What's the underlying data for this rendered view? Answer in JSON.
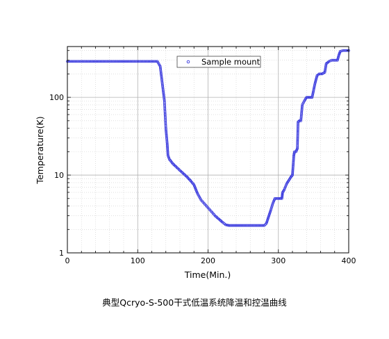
{
  "caption": "典型Qcryo-S-500干式低温系统降温和控温曲线",
  "chart_data": {
    "type": "scatter",
    "xlabel": "Time(Min.)",
    "ylabel": "Temperature(K)",
    "xlim": [
      0,
      400
    ],
    "ylim": [
      1,
      450
    ],
    "yscale": "log",
    "x_ticks": [
      "0",
      "100",
      "200",
      "300",
      "400"
    ],
    "y_ticks": [
      "1",
      "10",
      "100"
    ],
    "grid": "major solid, minor dotted",
    "legend_position": "top",
    "colors": {
      "series": "#3333dd",
      "grid_major": "#b0b0b0",
      "grid_minor": "#cccccc"
    },
    "series": [
      {
        "name": "Sample mount",
        "x": [
          0,
          20,
          40,
          60,
          80,
          100,
          120,
          128,
          132,
          135,
          138,
          140,
          142,
          143,
          145,
          150,
          160,
          170,
          175,
          180,
          185,
          190,
          200,
          210,
          220,
          225,
          230,
          240,
          250,
          260,
          270,
          280,
          283,
          286,
          289,
          292,
          295,
          300,
          305,
          306,
          308,
          312,
          315,
          318,
          320,
          322,
          323,
          325,
          327,
          328,
          330,
          332,
          334,
          337,
          340,
          345,
          348,
          352,
          355,
          358,
          362,
          366,
          368,
          372,
          376,
          380,
          384,
          386,
          388,
          392,
          396,
          400
        ],
        "y": [
          290,
          290,
          290,
          290,
          290,
          290,
          290,
          290,
          250,
          150,
          90,
          40,
          25,
          18,
          16,
          14,
          11.5,
          9.5,
          8.5,
          7.5,
          5.8,
          4.8,
          3.8,
          3.0,
          2.5,
          2.3,
          2.25,
          2.25,
          2.25,
          2.25,
          2.25,
          2.25,
          2.4,
          2.9,
          3.5,
          4.3,
          5.0,
          5.0,
          5.0,
          6.0,
          6.4,
          7.8,
          8.6,
          9.5,
          10,
          18,
          20,
          20,
          22,
          48,
          50,
          50,
          80,
          90,
          100,
          100,
          100,
          150,
          190,
          200,
          200,
          210,
          270,
          290,
          300,
          300,
          300,
          350,
          390,
          400,
          400,
          400
        ]
      }
    ]
  }
}
